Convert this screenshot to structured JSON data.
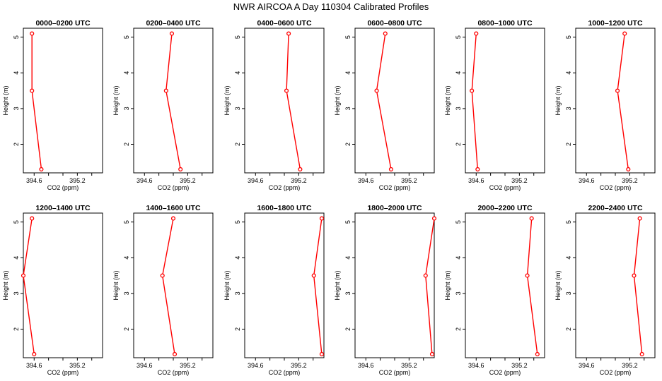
{
  "figure": {
    "title": "NWR AIRCOA A   Day 110304   Calibrated Profiles"
  },
  "chart_data": [
    {
      "type": "line",
      "title": "0000–0200 UTC",
      "xlabel": "CO2 (ppm)",
      "ylabel": "Height (m)",
      "x_ticks": [
        394.6,
        395.2
      ],
      "y_ticks": [
        2,
        3,
        4,
        5
      ],
      "xlim": [
        394.45,
        395.55
      ],
      "ylim": [
        1.2,
        5.25
      ],
      "series": [
        {
          "color": "#ff0000",
          "points": [
            {
              "x": 394.57,
              "y": 5.1
            },
            {
              "x": 394.57,
              "y": 3.5
            },
            {
              "x": 394.7,
              "y": 1.3
            }
          ]
        }
      ]
    },
    {
      "type": "line",
      "title": "0200–0400 UTC",
      "xlabel": "CO2 (ppm)",
      "ylabel": "Height (m)",
      "x_ticks": [
        394.6,
        395.2
      ],
      "y_ticks": [
        2,
        3,
        4,
        5
      ],
      "xlim": [
        394.45,
        395.55
      ],
      "ylim": [
        1.2,
        5.25
      ],
      "series": [
        {
          "color": "#ff0000",
          "points": [
            {
              "x": 394.98,
              "y": 5.1
            },
            {
              "x": 394.9,
              "y": 3.5
            },
            {
              "x": 395.1,
              "y": 1.3
            }
          ]
        }
      ]
    },
    {
      "type": "line",
      "title": "0400–0600 UTC",
      "xlabel": "CO2 (ppm)",
      "ylabel": "Height (m)",
      "x_ticks": [
        394.6,
        395.2
      ],
      "y_ticks": [
        2,
        3,
        4,
        5
      ],
      "xlim": [
        394.45,
        395.55
      ],
      "ylim": [
        1.2,
        5.25
      ],
      "series": [
        {
          "color": "#ff0000",
          "points": [
            {
              "x": 395.06,
              "y": 5.1
            },
            {
              "x": 395.03,
              "y": 3.5
            },
            {
              "x": 395.22,
              "y": 1.3
            }
          ]
        }
      ]
    },
    {
      "type": "line",
      "title": "0600–0800 UTC",
      "xlabel": "CO2 (ppm)",
      "ylabel": "Height (m)",
      "x_ticks": [
        394.6,
        395.2
      ],
      "y_ticks": [
        2,
        3,
        4,
        5
      ],
      "xlim": [
        394.45,
        395.55
      ],
      "ylim": [
        1.2,
        5.25
      ],
      "series": [
        {
          "color": "#ff0000",
          "points": [
            {
              "x": 394.87,
              "y": 5.1
            },
            {
              "x": 394.75,
              "y": 3.5
            },
            {
              "x": 394.95,
              "y": 1.3
            }
          ]
        }
      ]
    },
    {
      "type": "line",
      "title": "0800–1000 UTC",
      "xlabel": "CO2 (ppm)",
      "ylabel": "Height (m)",
      "x_ticks": [
        394.6,
        395.2
      ],
      "y_ticks": [
        2,
        3,
        4,
        5
      ],
      "xlim": [
        394.45,
        395.55
      ],
      "ylim": [
        1.2,
        5.25
      ],
      "series": [
        {
          "color": "#ff0000",
          "points": [
            {
              "x": 394.6,
              "y": 5.1
            },
            {
              "x": 394.54,
              "y": 3.5
            },
            {
              "x": 394.62,
              "y": 1.3
            }
          ]
        }
      ]
    },
    {
      "type": "line",
      "title": "1000–1200 UTC",
      "xlabel": "CO2 (ppm)",
      "ylabel": "Height (m)",
      "x_ticks": [
        394.6,
        395.2
      ],
      "y_ticks": [
        2,
        3,
        4,
        5
      ],
      "xlim": [
        394.45,
        395.55
      ],
      "ylim": [
        1.2,
        5.25
      ],
      "series": [
        {
          "color": "#ff0000",
          "points": [
            {
              "x": 395.13,
              "y": 5.1
            },
            {
              "x": 395.03,
              "y": 3.5
            },
            {
              "x": 395.18,
              "y": 1.3
            }
          ]
        }
      ]
    },
    {
      "type": "line",
      "title": "1200–1400 UTC",
      "xlabel": "CO2 (ppm)",
      "ylabel": "Height (m)",
      "x_ticks": [
        394.6,
        395.2
      ],
      "y_ticks": [
        2,
        3,
        4,
        5
      ],
      "xlim": [
        394.45,
        395.55
      ],
      "ylim": [
        1.2,
        5.25
      ],
      "series": [
        {
          "color": "#ff0000",
          "points": [
            {
              "x": 394.57,
              "y": 5.1
            },
            {
              "x": 394.45,
              "y": 3.5
            },
            {
              "x": 394.6,
              "y": 1.3
            }
          ]
        }
      ]
    },
    {
      "type": "line",
      "title": "1400–1600 UTC",
      "xlabel": "CO2 (ppm)",
      "ylabel": "Height (m)",
      "x_ticks": [
        394.6,
        395.2
      ],
      "y_ticks": [
        2,
        3,
        4,
        5
      ],
      "xlim": [
        394.45,
        395.55
      ],
      "ylim": [
        1.2,
        5.25
      ],
      "series": [
        {
          "color": "#ff0000",
          "points": [
            {
              "x": 395.0,
              "y": 5.1
            },
            {
              "x": 394.85,
              "y": 3.5
            },
            {
              "x": 395.02,
              "y": 1.3
            }
          ]
        }
      ]
    },
    {
      "type": "line",
      "title": "1600–1800 UTC",
      "xlabel": "CO2 (ppm)",
      "ylabel": "Height (m)",
      "x_ticks": [
        394.6,
        395.2
      ],
      "y_ticks": [
        2,
        3,
        4,
        5
      ],
      "xlim": [
        394.45,
        395.55
      ],
      "ylim": [
        1.2,
        5.25
      ],
      "series": [
        {
          "color": "#ff0000",
          "points": [
            {
              "x": 395.52,
              "y": 5.1
            },
            {
              "x": 395.41,
              "y": 3.5
            },
            {
              "x": 395.52,
              "y": 1.3
            }
          ]
        }
      ]
    },
    {
      "type": "line",
      "title": "1800–2000 UTC",
      "xlabel": "CO2 (ppm)",
      "ylabel": "Height (m)",
      "x_ticks": [
        394.6,
        395.2
      ],
      "y_ticks": [
        2,
        3,
        4,
        5
      ],
      "xlim": [
        394.45,
        395.55
      ],
      "ylim": [
        1.2,
        5.25
      ],
      "series": [
        {
          "color": "#ff0000",
          "points": [
            {
              "x": 395.55,
              "y": 5.1
            },
            {
              "x": 395.43,
              "y": 3.5
            },
            {
              "x": 395.52,
              "y": 1.3
            }
          ]
        }
      ]
    },
    {
      "type": "line",
      "title": "2000–2200 UTC",
      "xlabel": "CO2 (ppm)",
      "ylabel": "Height (m)",
      "x_ticks": [
        394.6,
        395.2
      ],
      "y_ticks": [
        2,
        3,
        4,
        5
      ],
      "xlim": [
        394.45,
        395.55
      ],
      "ylim": [
        1.2,
        5.25
      ],
      "series": [
        {
          "color": "#ff0000",
          "points": [
            {
              "x": 395.37,
              "y": 5.1
            },
            {
              "x": 395.31,
              "y": 3.5
            },
            {
              "x": 395.45,
              "y": 1.3
            }
          ]
        }
      ]
    },
    {
      "type": "line",
      "title": "2200–2400 UTC",
      "xlabel": "CO2 (ppm)",
      "ylabel": "Height (m)",
      "x_ticks": [
        394.6,
        395.2
      ],
      "y_ticks": [
        2,
        3,
        4,
        5
      ],
      "xlim": [
        394.45,
        395.55
      ],
      "ylim": [
        1.2,
        5.25
      ],
      "series": [
        {
          "color": "#ff0000",
          "points": [
            {
              "x": 395.34,
              "y": 5.1
            },
            {
              "x": 395.26,
              "y": 3.5
            },
            {
              "x": 395.37,
              "y": 1.3
            }
          ]
        }
      ]
    }
  ]
}
